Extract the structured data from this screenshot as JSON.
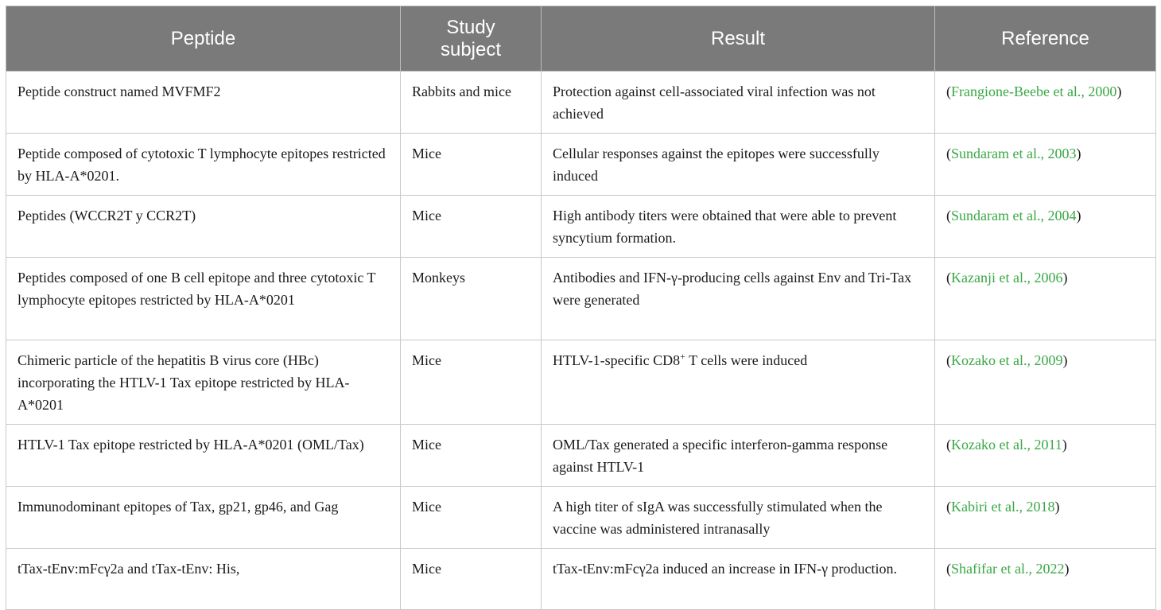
{
  "table": {
    "headers": [
      "Peptide",
      "Study\nsubject",
      "Result",
      "Reference"
    ],
    "rows": [
      {
        "peptide": "Peptide construct named MVFMF2",
        "subject": "Rabbits and mice",
        "result": "Protection against cell-associated viral infection was not achieved",
        "reference": "Frangione-Beebe et al., 2000"
      },
      {
        "peptide": "Peptide composed of cytotoxic T lymphocyte epitopes restricted by HLA-A*0201.",
        "subject": "Mice",
        "result": "Cellular responses against the epitopes were successfully induced",
        "reference": "Sundaram et al., 2003"
      },
      {
        "peptide": "Peptides (WCCR2T y CCR2T)",
        "subject": "Mice",
        "result": "High antibody titers were obtained that were able to prevent syncytium formation.",
        "reference": "Sundaram et al., 2004"
      },
      {
        "peptide": "Peptides composed of one B cell epitope and three cytotoxic T lymphocyte epitopes restricted by HLA-A*0201",
        "subject": "Monkeys",
        "result": "Antibodies and IFN-γ-producing cells against Env and Tri-Tax were generated",
        "reference": "Kazanji et al., 2006"
      },
      {
        "peptide": "Chimeric particle of the hepatitis B virus core (HBc) incorporating the HTLV-1 Tax epitope restricted by HLA-A*0201",
        "subject": "Mice",
        "result_pre": "HTLV-1-specific CD8",
        "result_sup": "+",
        "result_post": " T cells were induced",
        "reference": "Kozako et al., 2009"
      },
      {
        "peptide": "HTLV-1 Tax epitope restricted by HLA-A*0201 (OML/Tax)",
        "subject": "Mice",
        "result": "OML/Tax generated a specific interferon-gamma response against HTLV-1",
        "reference": "Kozako et al., 2011"
      },
      {
        "peptide": "Immunodominant epitopes of Tax, gp21, gp46, and Gag",
        "subject": "Mice",
        "result": "A high titer of sIgA was successfully stimulated when the vaccine was administered intranasally",
        "reference": "Kabiri et al., 2018"
      },
      {
        "peptide": "tTax-tEnv:mFcγ2a and tTax-tEnv: His,",
        "subject": "Mice",
        "result": "tTax-tEnv:mFcγ2a induced an increase in IFN-γ production.",
        "reference": "Shafifar et al., 2022"
      }
    ]
  }
}
